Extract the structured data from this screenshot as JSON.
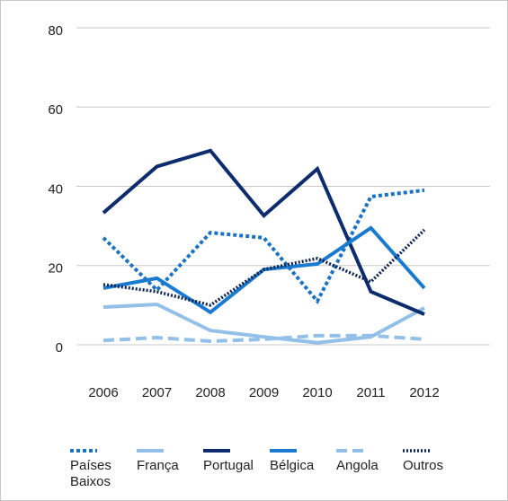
{
  "chart_data": {
    "type": "line",
    "categories": [
      "2006",
      "2007",
      "2008",
      "2009",
      "2010",
      "2011",
      "2012"
    ],
    "ylim": [
      0,
      80
    ],
    "yticks": [
      0,
      20,
      40,
      60,
      80
    ],
    "grid": true,
    "series": [
      {
        "name": "Países Baixos",
        "color": "#1a72c4",
        "style": "dotted",
        "values": [
          27,
          13.8,
          28.3,
          27,
          11,
          37.4,
          39
        ]
      },
      {
        "name": "França",
        "color": "#93c0e8",
        "style": "solid",
        "values": [
          9.5,
          10.2,
          3.6,
          2,
          0.5,
          2,
          9.3
        ]
      },
      {
        "name": "Portugal",
        "color": "#0d2c6e",
        "style": "solid",
        "values": [
          33.3,
          45,
          49,
          32.6,
          44.4,
          13.4,
          7.7
        ]
      },
      {
        "name": "Bélgica",
        "color": "#1a7ad0",
        "style": "solid",
        "values": [
          14.3,
          16.8,
          8.2,
          19,
          20.4,
          29.5,
          14.3
        ]
      },
      {
        "name": "Angola",
        "color": "#93c0e8",
        "style": "dashed",
        "values": [
          1.1,
          1.8,
          0.9,
          1.4,
          2.3,
          2.3,
          1.4
        ]
      },
      {
        "name": "Outros",
        "color": "#0d2350",
        "style": "finedotted",
        "values": [
          15.2,
          13.4,
          10,
          19,
          21.8,
          15.9,
          29
        ]
      }
    ]
  }
}
